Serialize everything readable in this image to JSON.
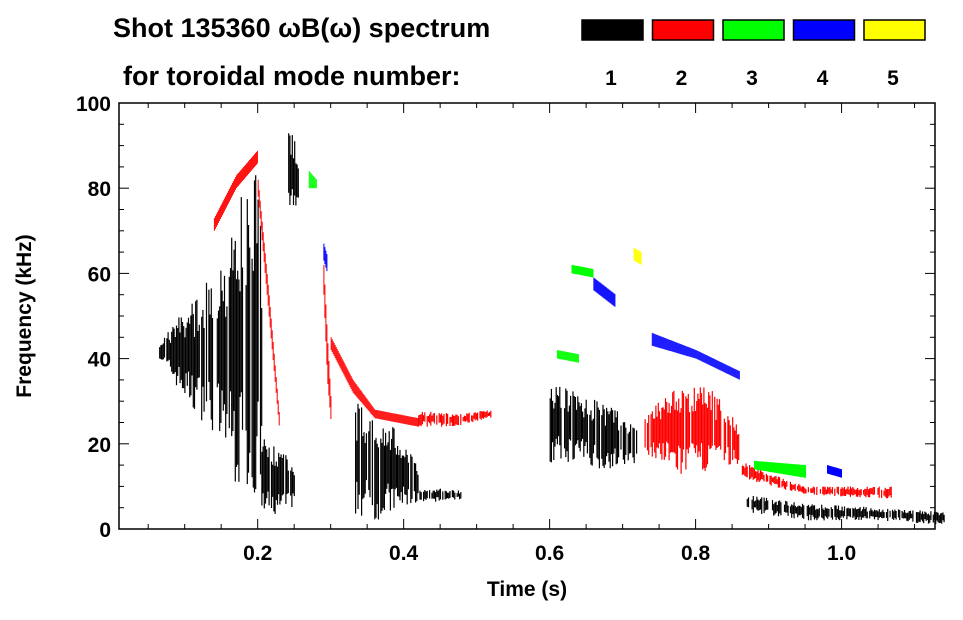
{
  "chart_data": {
    "type": "heatmap",
    "title": "Shot 135360 ωB(ω) spectrum",
    "subtitle": "for toroidal mode number:",
    "xlabel": "Time (s)",
    "ylabel": "Frequency (kHz)",
    "xlim": [
      0.01,
      1.128
    ],
    "ylim": [
      0,
      100
    ],
    "xticks": [
      {
        "v": 0.2,
        "label": "0.2"
      },
      {
        "v": 0.4,
        "label": "0.4"
      },
      {
        "v": 0.6,
        "label": "0.6"
      },
      {
        "v": 0.8,
        "label": "0.8"
      },
      {
        "v": 1.0,
        "label": "1.0"
      }
    ],
    "yticks": [
      {
        "v": 0,
        "label": "0"
      },
      {
        "v": 20,
        "label": "20"
      },
      {
        "v": 40,
        "label": "40"
      },
      {
        "v": 60,
        "label": "60"
      },
      {
        "v": 80,
        "label": "80"
      },
      {
        "v": 100,
        "label": "100"
      }
    ],
    "legend": [
      {
        "mode": "1",
        "color": "#000000"
      },
      {
        "mode": "2",
        "color": "#ff0000"
      },
      {
        "mode": "3",
        "color": "#00ff00"
      },
      {
        "mode": "4",
        "color": "#0000ff"
      },
      {
        "mode": "5",
        "color": "#ffff00"
      }
    ],
    "features": [
      {
        "mode": 1,
        "pts": [
          [
            0.065,
            40,
            44
          ],
          [
            0.1,
            30,
            52
          ],
          [
            0.14,
            22,
            60
          ],
          [
            0.17,
            10,
            75
          ],
          [
            0.195,
            5,
            88
          ],
          [
            0.205,
            2,
            70
          ]
        ]
      },
      {
        "mode": 1,
        "pts": [
          [
            0.205,
            2,
            25
          ],
          [
            0.225,
            3,
            20
          ],
          [
            0.25,
            5,
            15
          ]
        ]
      },
      {
        "mode": 1,
        "pts": [
          [
            0.24,
            75,
            95
          ],
          [
            0.255,
            72,
            90
          ]
        ]
      },
      {
        "mode": 1,
        "pts": [
          [
            0.33,
            3,
            30
          ],
          [
            0.37,
            2,
            28
          ],
          [
            0.4,
            5,
            20
          ],
          [
            0.42,
            6,
            15
          ]
        ]
      },
      {
        "mode": 1,
        "pts": [
          [
            0.42,
            6,
            10
          ],
          [
            0.48,
            7,
            9
          ]
        ]
      },
      {
        "mode": 1,
        "pts": [
          [
            0.6,
            15,
            35
          ],
          [
            0.64,
            16,
            32
          ],
          [
            0.67,
            14,
            30
          ],
          [
            0.72,
            15,
            25
          ]
        ]
      },
      {
        "mode": 1,
        "pts": [
          [
            0.87,
            4,
            8
          ],
          [
            0.95,
            2,
            6
          ],
          [
            1.05,
            2,
            5
          ],
          [
            1.14,
            1,
            4
          ]
        ]
      },
      {
        "mode": 2,
        "pts": [
          [
            0.14,
            70,
            73
          ],
          [
            0.17,
            80,
            83
          ],
          [
            0.2,
            86,
            89
          ]
        ],
        "thin": true
      },
      {
        "mode": 2,
        "pts": [
          [
            0.2,
            78,
            82
          ],
          [
            0.215,
            50,
            55
          ],
          [
            0.23,
            22,
            25
          ]
        ],
        "thin": true
      },
      {
        "mode": 2,
        "pts": [
          [
            0.29,
            55,
            62
          ],
          [
            0.295,
            35,
            45
          ],
          [
            0.3,
            25,
            30
          ]
        ],
        "thin": true
      },
      {
        "mode": 2,
        "pts": [
          [
            0.3,
            42,
            45
          ],
          [
            0.33,
            32,
            35
          ],
          [
            0.36,
            26,
            28
          ],
          [
            0.42,
            24,
            26
          ]
        ],
        "thin": true
      },
      {
        "mode": 2,
        "pts": [
          [
            0.42,
            24,
            28
          ],
          [
            0.47,
            24,
            27
          ],
          [
            0.52,
            26,
            28
          ]
        ]
      },
      {
        "mode": 2,
        "pts": [
          [
            0.73,
            18,
            28
          ],
          [
            0.78,
            12,
            35
          ],
          [
            0.82,
            14,
            33
          ],
          [
            0.86,
            15,
            25
          ]
        ]
      },
      {
        "mode": 2,
        "pts": [
          [
            0.86,
            12,
            16
          ],
          [
            0.95,
            8,
            10
          ],
          [
            1.07,
            7,
            10
          ]
        ]
      },
      {
        "mode": 3,
        "pts": [
          [
            0.61,
            40,
            42
          ],
          [
            0.64,
            39,
            41
          ]
        ],
        "thin": true
      },
      {
        "mode": 3,
        "pts": [
          [
            0.63,
            60,
            62
          ],
          [
            0.66,
            59,
            61
          ]
        ],
        "thin": true
      },
      {
        "mode": 3,
        "pts": [
          [
            0.88,
            14,
            16
          ],
          [
            0.95,
            12,
            15
          ]
        ],
        "thin": true
      },
      {
        "mode": 3,
        "pts": [
          [
            0.27,
            80,
            84
          ],
          [
            0.28,
            80,
            82
          ]
        ],
        "thin": true
      },
      {
        "mode": 4,
        "pts": [
          [
            0.29,
            63,
            67
          ],
          [
            0.295,
            60,
            64
          ]
        ],
        "thin": true
      },
      {
        "mode": 4,
        "pts": [
          [
            0.66,
            56,
            59
          ],
          [
            0.69,
            52,
            55
          ]
        ],
        "thin": true
      },
      {
        "mode": 4,
        "pts": [
          [
            0.74,
            43,
            46
          ],
          [
            0.8,
            40,
            42
          ],
          [
            0.86,
            35,
            37
          ]
        ],
        "thin": true
      },
      {
        "mode": 4,
        "pts": [
          [
            0.98,
            13,
            15
          ],
          [
            1.0,
            12,
            14
          ]
        ],
        "thin": true
      },
      {
        "mode": 5,
        "pts": [
          [
            0.715,
            63,
            66
          ],
          [
            0.725,
            62,
            65
          ]
        ],
        "thin": true
      }
    ]
  }
}
